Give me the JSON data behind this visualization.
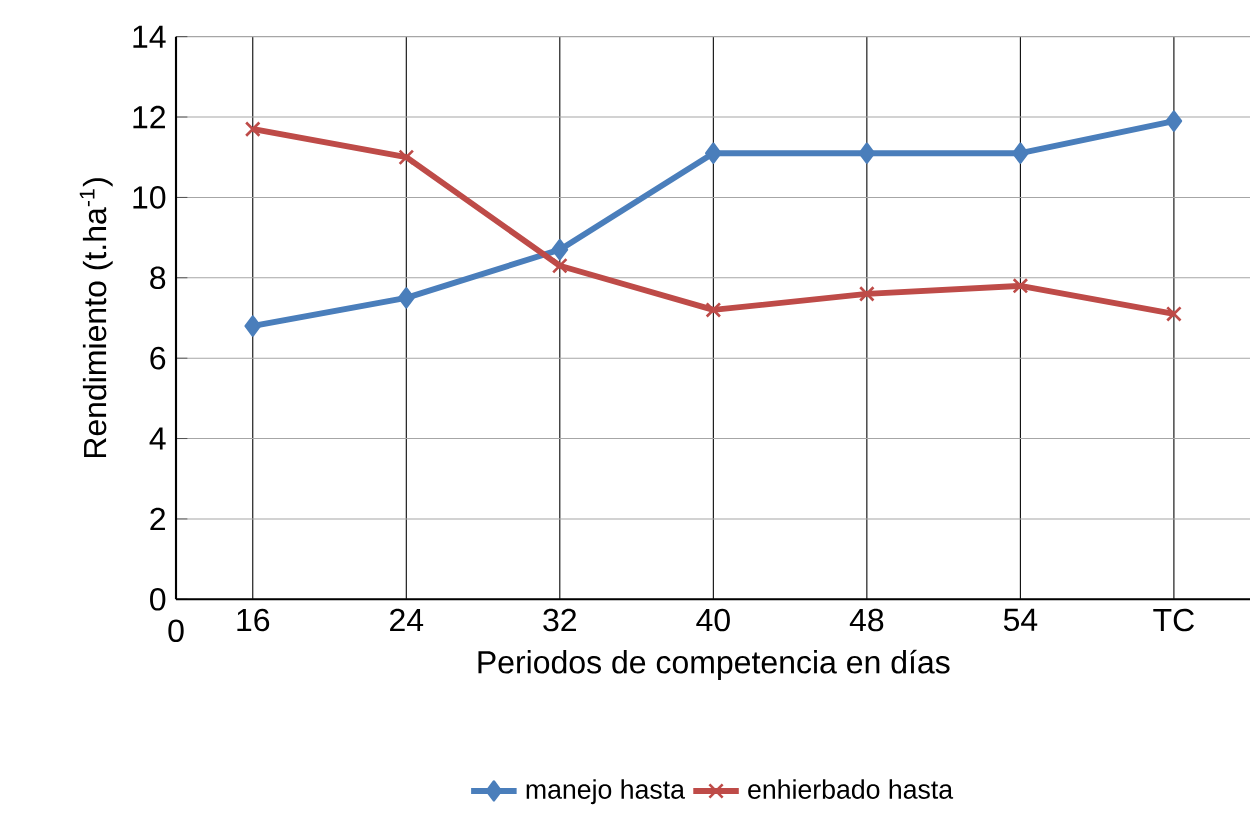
{
  "chart_data": {
    "type": "line",
    "xlabel": "Periodos de competencia en días",
    "ylabel": "Rendimiento (t.ha$^{-1}$)",
    "categories": [
      "16",
      "24",
      "32",
      "40",
      "48",
      "54",
      "TC"
    ],
    "series": [
      {
        "name": "manejo hasta",
        "color": "#4a7ebb",
        "marker": "diamond",
        "values": [
          6.8,
          7.5,
          8.7,
          11.1,
          11.1,
          11.1,
          11.9
        ]
      },
      {
        "name": "enhierbado hasta",
        "color": "#be4b48",
        "marker": "cross",
        "values": [
          11.7,
          11.0,
          8.3,
          7.2,
          7.6,
          7.8,
          7.1
        ]
      }
    ],
    "ylim": [
      0,
      14
    ],
    "yticks": [
      0,
      2,
      4,
      6,
      8,
      10,
      12,
      14
    ],
    "annotations": [
      "0"
    ],
    "grid": true,
    "legend": "bottom"
  }
}
